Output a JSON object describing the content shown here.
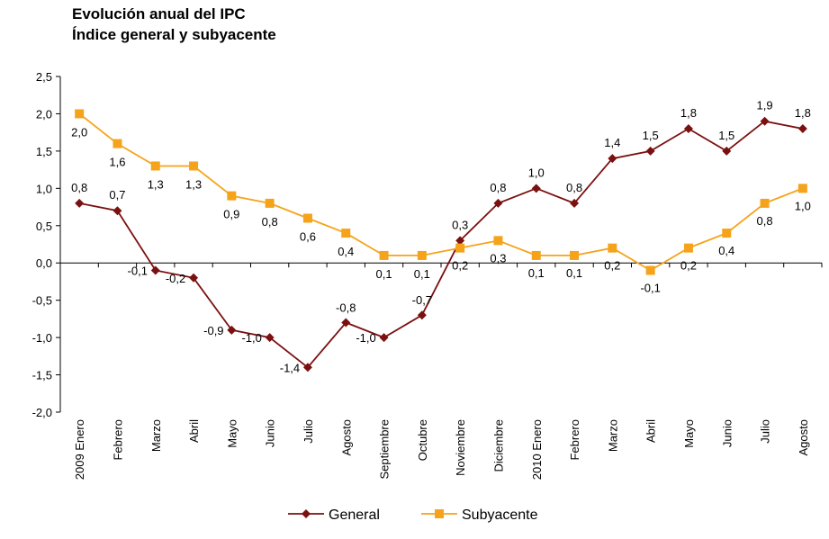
{
  "chart_data": {
    "type": "line",
    "title": "Evolución anual del IPC",
    "subtitle": "Índice general y subyacente",
    "categories": [
      "2009 Enero",
      "Febrero",
      "Marzo",
      "Abril",
      "Mayo",
      "Junio",
      "Julio",
      "Agosto",
      "Septiembre",
      "Octubre",
      "Noviembre",
      "Diciembre",
      "2010 Enero",
      "Febrero",
      "Marzo",
      "Abril",
      "Mayo",
      "Junio",
      "Julio",
      "Agosto"
    ],
    "ylim": [
      -2.0,
      2.5
    ],
    "yticks": [
      2.5,
      2.0,
      1.5,
      1.0,
      0.5,
      0.0,
      -0.5,
      -1.0,
      -1.5,
      -2.0
    ],
    "ytick_labels": [
      "2,5",
      "2,0",
      "1,5",
      "1,0",
      "0,5",
      "0,0",
      "-0,5",
      "-1,0",
      "-1,5",
      "-2,0"
    ],
    "grid": false,
    "legend_position": "bottom",
    "series": [
      {
        "name": "General",
        "color": "#7b1010",
        "marker": "diamond",
        "values": [
          0.8,
          0.7,
          -0.1,
          -0.2,
          -0.9,
          -1.0,
          -1.4,
          -0.8,
          -1.0,
          -0.7,
          0.3,
          0.8,
          1.0,
          0.8,
          1.4,
          1.5,
          1.8,
          1.5,
          1.9,
          1.8
        ],
        "labels": [
          "0,8",
          "0,7",
          "-0,1",
          "-0,2",
          "-0,9",
          "-1,0",
          "-1,4",
          "-0,8",
          "-1,0",
          "-0,7",
          "0,3",
          "0,8",
          "1,0",
          "0,8",
          "1,4",
          "1,5",
          "1,8",
          "1,5",
          "1,9",
          "1,8"
        ]
      },
      {
        "name": "Subyacente",
        "color": "#f5a31a",
        "marker": "square",
        "values": [
          2.0,
          1.6,
          1.3,
          1.3,
          0.9,
          0.8,
          0.6,
          0.4,
          0.1,
          0.1,
          0.2,
          0.3,
          0.1,
          0.1,
          0.2,
          -0.1,
          0.2,
          0.4,
          0.8,
          1.0
        ],
        "labels": [
          "2,0",
          "1,6",
          "1,3",
          "1,3",
          "0,9",
          "0,8",
          "0,6",
          "0,4",
          "0,1",
          "0,1",
          "0,2",
          "0,3",
          "0,1",
          "0,1",
          "0,2",
          "-0,1",
          "0,2",
          "0,4",
          "0,8",
          "1,0"
        ]
      }
    ]
  }
}
